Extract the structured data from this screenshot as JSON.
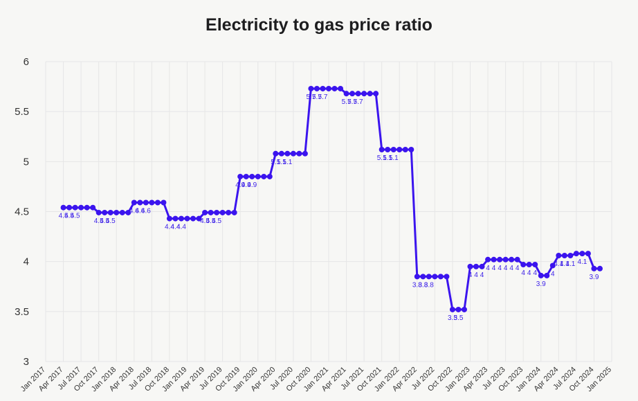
{
  "chart_data": {
    "type": "line",
    "title": "Electricity to gas price ratio",
    "xlabel": "",
    "ylabel": "",
    "ylim": [
      3,
      6
    ],
    "yticks": [
      "3",
      "3.5",
      "4",
      "4.5",
      "5",
      "5.5",
      "6"
    ],
    "grid": true,
    "legend": "none",
    "colors": {
      "line": "#3b14ee",
      "grid": "#e6e6e6",
      "background": "#f7f7f5"
    },
    "xticks": [
      "Jan 2017",
      "Apr 2017",
      "Jul 2017",
      "Oct 2017",
      "Jan 2018",
      "Apr 2018",
      "Jul 2018",
      "Oct 2018",
      "Jan 2019",
      "Apr 2019",
      "Jul 2019",
      "Oct 2019",
      "Jan 2020",
      "Apr 2020",
      "Jul 2020",
      "Oct 2020",
      "Jan 2021",
      "Apr 2021",
      "Jul 2021",
      "Oct 2021",
      "Jan 2022",
      "Apr 2022",
      "Jul 2022",
      "Oct 2022",
      "Jan 2023",
      "Apr 2023",
      "Jul 2023",
      "Oct 2023",
      "Jan 2024",
      "Apr 2024",
      "Jul 2024",
      "Oct 2024",
      "Jan 2025"
    ],
    "series": [
      {
        "x": [
          "2017-04",
          "2017-05",
          "2017-06",
          "2017-07",
          "2017-08",
          "2017-09",
          "2017-10",
          "2017-11",
          "2017-12",
          "2018-01",
          "2018-02",
          "2018-03",
          "2018-04",
          "2018-05",
          "2018-06",
          "2018-07",
          "2018-08",
          "2018-09",
          "2018-10",
          "2018-11",
          "2018-12",
          "2019-01",
          "2019-02",
          "2019-03",
          "2019-04",
          "2019-05",
          "2019-06",
          "2019-07",
          "2019-08",
          "2019-09",
          "2019-10",
          "2019-11",
          "2019-12",
          "2020-01",
          "2020-02",
          "2020-03",
          "2020-04",
          "2020-05",
          "2020-06",
          "2020-07",
          "2020-08",
          "2020-09",
          "2020-10",
          "2020-11",
          "2020-12",
          "2021-01",
          "2021-02",
          "2021-03",
          "2021-04",
          "2021-05",
          "2021-06",
          "2021-07",
          "2021-08",
          "2021-09",
          "2021-10",
          "2021-11",
          "2021-12",
          "2022-01",
          "2022-02",
          "2022-03",
          "2022-04",
          "2022-05",
          "2022-06",
          "2022-07",
          "2022-08",
          "2022-09",
          "2022-10",
          "2022-11",
          "2022-12",
          "2023-01",
          "2023-02",
          "2023-03",
          "2023-04",
          "2023-05",
          "2023-06",
          "2023-07",
          "2023-08",
          "2023-09",
          "2023-10",
          "2023-11",
          "2023-12",
          "2024-01",
          "2024-02",
          "2024-03",
          "2024-04",
          "2024-05",
          "2024-06",
          "2024-07",
          "2024-08",
          "2024-09",
          "2024-10",
          "2024-11"
        ],
        "values": [
          4.54,
          4.54,
          4.54,
          4.54,
          4.54,
          4.54,
          4.49,
          4.49,
          4.49,
          4.49,
          4.49,
          4.49,
          4.59,
          4.59,
          4.59,
          4.59,
          4.59,
          4.59,
          4.43,
          4.43,
          4.43,
          4.43,
          4.43,
          4.43,
          4.49,
          4.49,
          4.49,
          4.49,
          4.49,
          4.49,
          4.85,
          4.85,
          4.85,
          4.85,
          4.85,
          4.85,
          5.08,
          5.08,
          5.08,
          5.08,
          5.08,
          5.08,
          5.73,
          5.73,
          5.73,
          5.73,
          5.73,
          5.73,
          5.68,
          5.68,
          5.68,
          5.68,
          5.68,
          5.68,
          5.12,
          5.12,
          5.12,
          5.12,
          5.12,
          5.12,
          3.85,
          3.85,
          3.85,
          3.85,
          3.85,
          3.85,
          3.52,
          3.52,
          3.52,
          3.95,
          3.95,
          3.95,
          4.02,
          4.02,
          4.02,
          4.02,
          4.02,
          4.02,
          3.97,
          3.97,
          3.97,
          3.86,
          3.86,
          3.96,
          4.06,
          4.06,
          4.06,
          4.08,
          4.08,
          4.08,
          3.93,
          3.93
        ],
        "data_labels": [
          "4.5",
          "4.5",
          "4.5",
          "",
          "",
          "",
          "4.5",
          "4.5",
          "4.5",
          "",
          "",
          "",
          "4.6",
          "4.6",
          "4.6",
          "",
          "",
          "",
          "4.4",
          "4.4",
          "4.4",
          "",
          "",
          "",
          "4.5",
          "4.5",
          "4.5",
          "",
          "",
          "",
          "4.9",
          "4.9",
          "4.9",
          "",
          "",
          "",
          "5.1",
          "5.1",
          "5.1",
          "",
          "",
          "",
          "5.7",
          "5.7",
          "5.7",
          "",
          "",
          "",
          "5.7",
          "5.7",
          "5.7",
          "",
          "",
          "",
          "5.1",
          "5.1",
          "5.1",
          "",
          "",
          "",
          "3.8",
          "3.8",
          "3.8",
          "",
          "",
          "",
          "3.5",
          "3.5",
          "",
          "4",
          "4",
          "4",
          "4",
          "4",
          "4",
          "4",
          "4",
          "4",
          "4",
          "4",
          "4",
          "3.9",
          "",
          "4",
          "4.1",
          "4.1",
          "4.1",
          "",
          "4.1",
          "",
          "3.9",
          ""
        ]
      }
    ]
  }
}
